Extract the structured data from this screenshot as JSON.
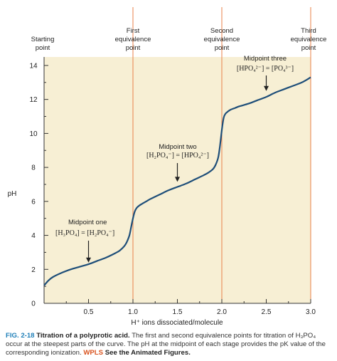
{
  "chart_data": {
    "type": "line",
    "xlabel": "H⁺ ions dissociated/molecule",
    "ylabel": "pH",
    "xlim": [
      0,
      3.0
    ],
    "ylim": [
      0,
      14.5
    ],
    "x_ticks": [
      "0.5",
      "1.0",
      "1.5",
      "2.0",
      "2.5",
      "3.0"
    ],
    "x_tick_values": [
      0.5,
      1.0,
      1.5,
      2.0,
      2.5,
      3.0
    ],
    "y_ticks": [
      "0",
      "2",
      "4",
      "6",
      "8",
      "10",
      "12",
      "14"
    ],
    "y_tick_values": [
      0,
      2,
      4,
      6,
      8,
      10,
      12,
      14
    ],
    "grid": false,
    "background": "#f7efd4",
    "line_color": "#1e4e79",
    "marker_line_color": "#e8824a",
    "series": [
      {
        "x": [
          0,
          0.05,
          0.1,
          0.2,
          0.3,
          0.4,
          0.5,
          0.6,
          0.7,
          0.8,
          0.85,
          0.9,
          0.93,
          0.96,
          0.98,
          1.0,
          1.02,
          1.04,
          1.07,
          1.1,
          1.15,
          1.2,
          1.3,
          1.4,
          1.5,
          1.6,
          1.7,
          1.8,
          1.85,
          1.9,
          1.93,
          1.96,
          1.98,
          2.0,
          2.02,
          2.04,
          2.07,
          2.1,
          2.15,
          2.2,
          2.3,
          2.4,
          2.5,
          2.6,
          2.7,
          2.8,
          2.9,
          3.0
        ],
        "y": [
          1.05,
          1.35,
          1.55,
          1.8,
          2.0,
          2.15,
          2.3,
          2.5,
          2.7,
          2.95,
          3.1,
          3.35,
          3.6,
          4.0,
          4.5,
          5.0,
          5.4,
          5.6,
          5.75,
          5.85,
          6.0,
          6.15,
          6.4,
          6.65,
          6.85,
          7.05,
          7.3,
          7.55,
          7.7,
          7.9,
          8.15,
          8.6,
          9.3,
          10.2,
          10.9,
          11.15,
          11.3,
          11.4,
          11.5,
          11.6,
          11.75,
          11.95,
          12.15,
          12.4,
          12.6,
          12.8,
          13.0,
          13.3
        ]
      }
    ],
    "equivalence_lines": [
      1.0,
      2.0,
      3.0
    ],
    "headers": [
      {
        "x": 0,
        "lines": [
          "Starting",
          "point"
        ]
      },
      {
        "x": 1.0,
        "lines": [
          "First",
          "equivalence",
          "point"
        ]
      },
      {
        "x": 2.0,
        "lines": [
          "Second",
          "equivalence",
          "point"
        ]
      },
      {
        "x": 3.0,
        "lines": [
          "Third",
          "equivalence",
          "point"
        ]
      }
    ],
    "annotations": [
      {
        "title": "Midpoint one",
        "equation": "[H₃PO₄] = [H₂PO₄⁻]",
        "x": 0.5,
        "y_arrow_tip": 2.4
      },
      {
        "title": "Midpoint two",
        "equation": "[H₂PO₄⁻] = [HPO₄²⁻]",
        "x": 1.5,
        "y_arrow_tip": 7.15
      },
      {
        "title": "Midpoint three",
        "equation": "[HPO₄²⁻] = [PO₄³⁻]",
        "x": 2.5,
        "y_arrow_tip": 12.5
      }
    ]
  },
  "caption": {
    "fig": "FIG. 2-18",
    "title": "Titration of a polyprotic acid.",
    "body": "The first and second equivalence points for titration of H₃PO₄ occur at the steepest parts of the curve. The pH at the midpoint of each stage provides the pK value of the corresponding ionization.",
    "wpls": "WPLS",
    "see": "See the Animated Figures."
  }
}
